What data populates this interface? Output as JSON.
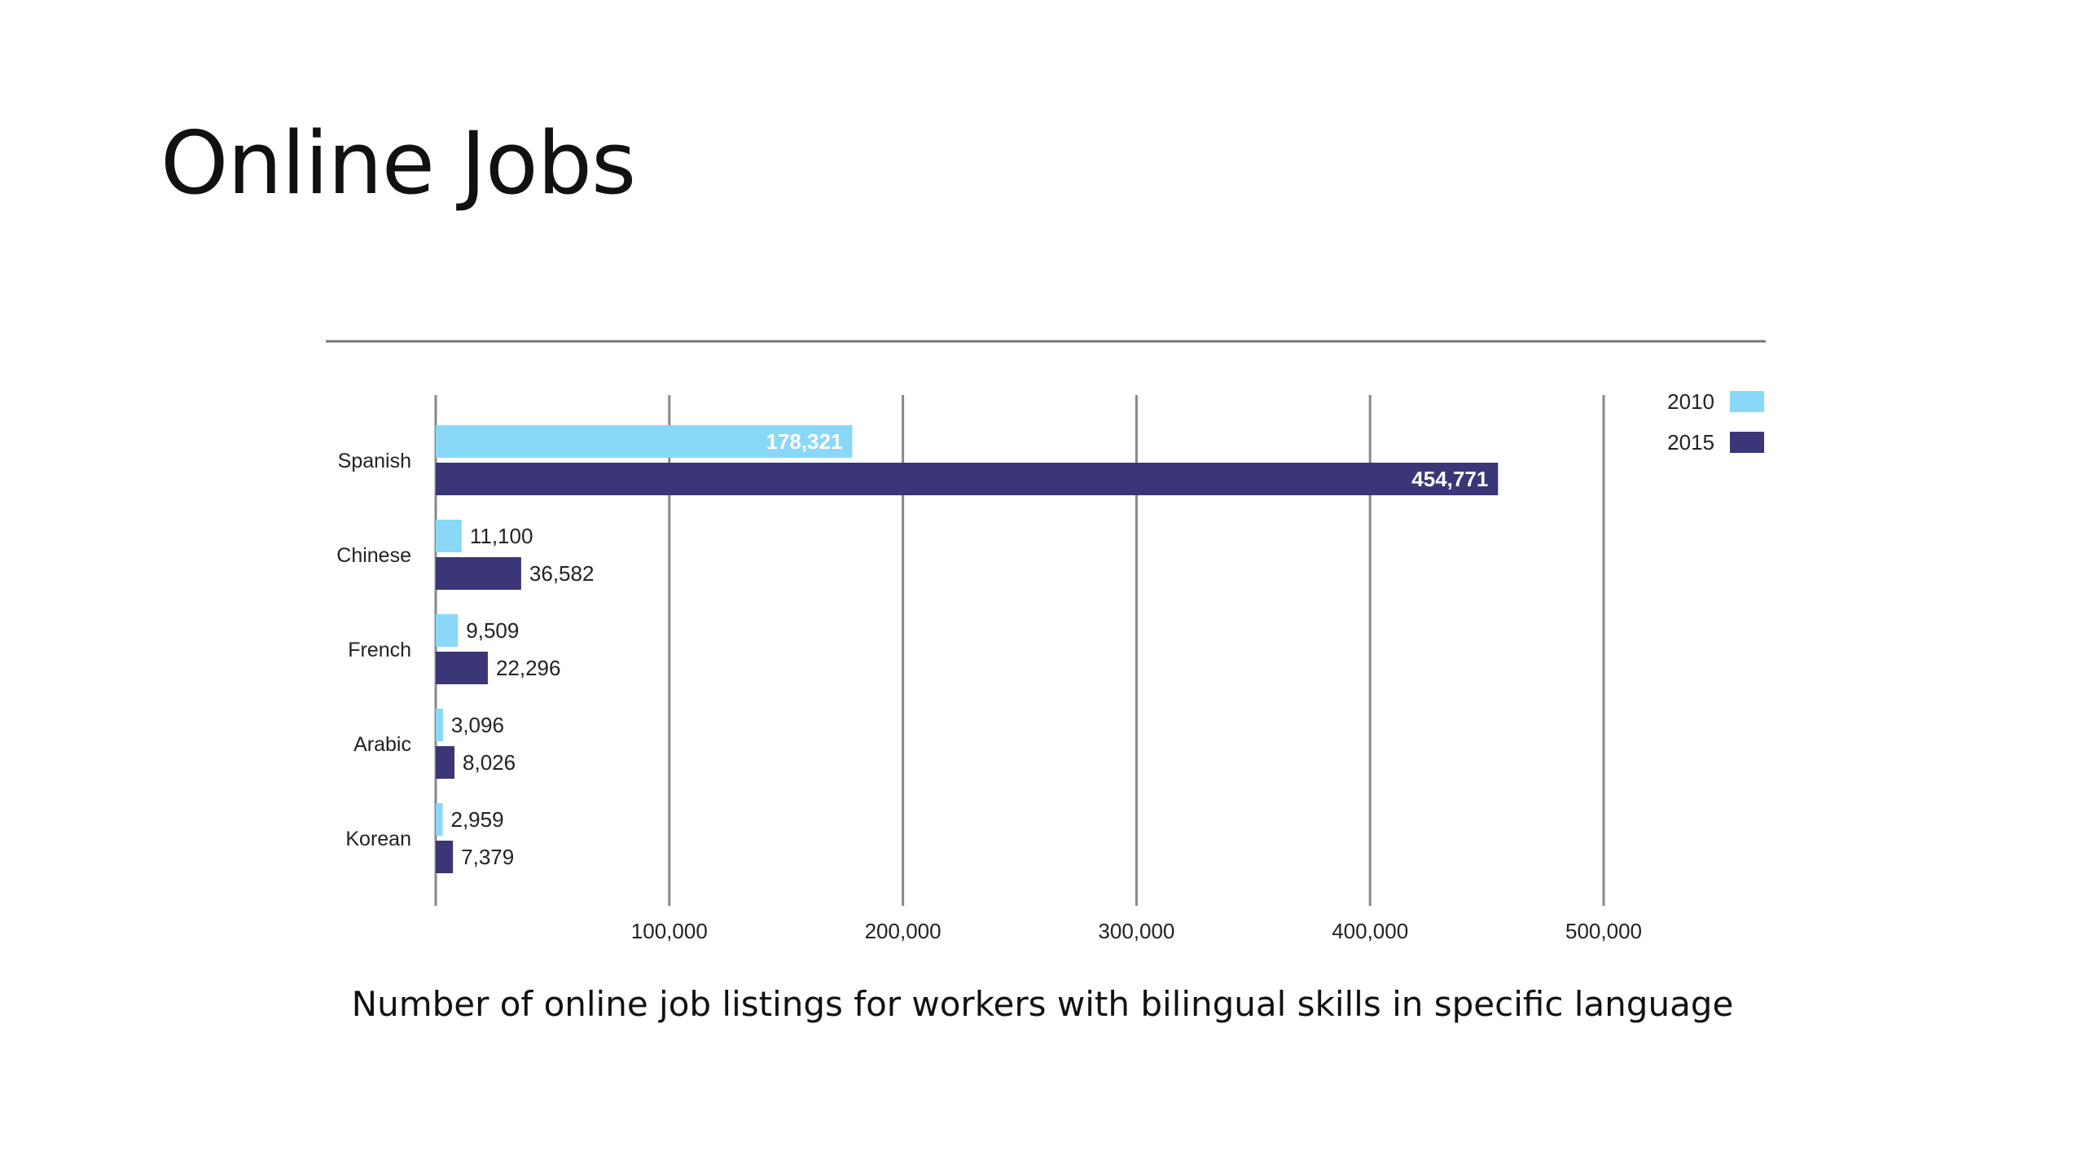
{
  "slide": {
    "title": "Online Jobs",
    "caption": "Number of online job listings for workers with bilingual skills in specific language"
  },
  "chart_data": {
    "type": "bar",
    "orientation": "horizontal",
    "categories": [
      "Spanish",
      "Chinese",
      "French",
      "Arabic",
      "Korean"
    ],
    "series": [
      {
        "name": "2010",
        "color": "#8ad8f8",
        "values": [
          178321,
          11100,
          9509,
          3096,
          2959
        ],
        "labels": [
          "178,321",
          "11,100",
          "9,509",
          "3,096",
          "2,959"
        ]
      },
      {
        "name": "2015",
        "color": "#3a3677",
        "values": [
          454771,
          36582,
          22296,
          8026,
          7379
        ],
        "labels": [
          "454,771",
          "36,582",
          "22,296",
          "8,026",
          "7,379"
        ]
      }
    ],
    "xticks": [
      100000,
      200000,
      300000,
      400000,
      500000
    ],
    "xtick_labels": [
      "100,000",
      "200,000",
      "300,000",
      "400,000",
      "500,000"
    ],
    "xlim": [
      0,
      500000
    ],
    "grid": true,
    "legend": "top-right"
  }
}
